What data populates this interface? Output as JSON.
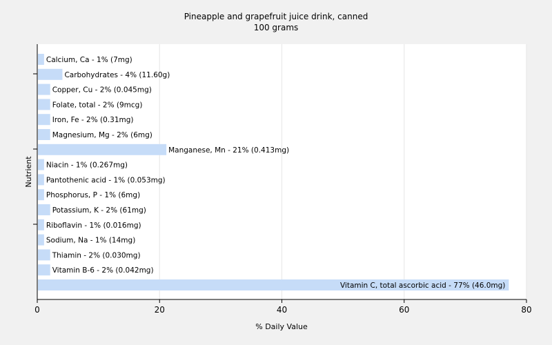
{
  "chart_data": {
    "type": "bar",
    "orientation": "horizontal",
    "title": "Pineapple and grapefruit juice drink, canned",
    "subtitle": "100 grams",
    "xlabel": "% Daily Value",
    "ylabel": "Nutrient",
    "xlim": [
      0,
      80
    ],
    "xticks": [
      0,
      20,
      40,
      60,
      80
    ],
    "grid": true,
    "bar_color": "#c6dcf8",
    "categories": [
      "Calcium, Ca",
      "Carbohydrates",
      "Copper, Cu",
      "Folate, total",
      "Iron, Fe",
      "Magnesium, Mg",
      "Manganese, Mn",
      "Niacin",
      "Pantothenic acid",
      "Phosphorus, P",
      "Potassium, K",
      "Riboflavin",
      "Sodium, Na",
      "Thiamin",
      "Vitamin B-6",
      "Vitamin C, total ascorbic acid"
    ],
    "values": [
      1,
      4,
      2,
      2,
      2,
      2,
      21,
      1,
      1,
      1,
      2,
      1,
      1,
      2,
      2,
      77
    ],
    "labels": [
      "Calcium, Ca - 1% (7mg)",
      "Carbohydrates - 4% (11.60g)",
      "Copper, Cu - 2% (0.045mg)",
      "Folate, total - 2% (9mcg)",
      "Iron, Fe - 2% (0.31mg)",
      "Magnesium, Mg - 2% (6mg)",
      "Manganese, Mn - 21% (0.413mg)",
      "Niacin - 1% (0.267mg)",
      "Pantothenic acid - 1% (0.053mg)",
      "Phosphorus, P - 1% (6mg)",
      "Potassium, K - 2% (61mg)",
      "Riboflavin - 1% (0.016mg)",
      "Sodium, Na - 1% (14mg)",
      "Thiamin - 2% (0.030mg)",
      "Vitamin B-6 - 2% (0.042mg)",
      "Vitamin C, total ascorbic acid - 77% (46.0mg)"
    ]
  }
}
